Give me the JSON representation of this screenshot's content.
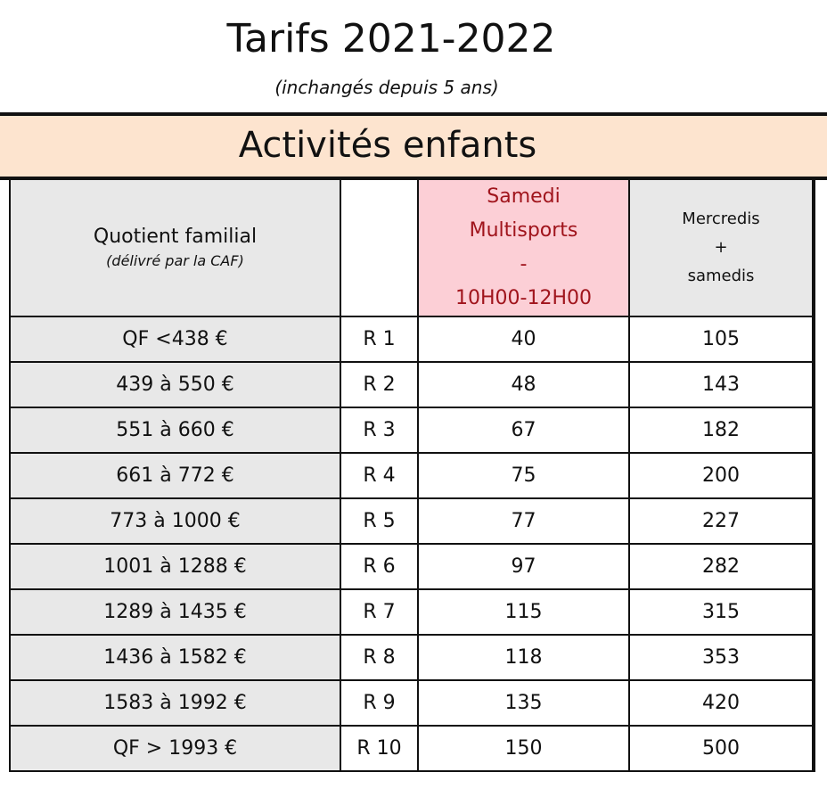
{
  "header": {
    "title": "Tarifs 2021-2022",
    "subtitle": "(inchangés depuis 5 ans)",
    "section": "Activités enfants"
  },
  "table": {
    "columns": {
      "qf_label": "Quotient familial",
      "qf_note": "(délivré par la CAF)",
      "range_label": "",
      "samedi_lines": [
        "Samedi",
        "Multisports",
        "-",
        "10H00-12H00"
      ],
      "mercredis_lines": [
        "Mercredis",
        "+",
        "samedis"
      ]
    },
    "rows": [
      {
        "qf": "QF <438 €",
        "range": "R 1",
        "samedi": "40",
        "mercredis": "105"
      },
      {
        "qf": "439 à 550 €",
        "range": "R 2",
        "samedi": "48",
        "mercredis": "143"
      },
      {
        "qf": "551 à 660 €",
        "range": "R 3",
        "samedi": "67",
        "mercredis": "182"
      },
      {
        "qf": "661 à 772 €",
        "range": "R 4",
        "samedi": "75",
        "mercredis": "200"
      },
      {
        "qf": "773 à 1000 €",
        "range": "R 5",
        "samedi": "77",
        "mercredis": "227"
      },
      {
        "qf": "1001 à 1288 €",
        "range": "R 6",
        "samedi": "97",
        "mercredis": "282"
      },
      {
        "qf": "1289 à 1435 €",
        "range": "R 7",
        "samedi": "115",
        "mercredis": "315"
      },
      {
        "qf": "1436 à 1582 €",
        "range": "R 8",
        "samedi": "118",
        "mercredis": "353"
      },
      {
        "qf": "1583 à 1992 €",
        "range": "R 9",
        "samedi": "135",
        "mercredis": "420"
      },
      {
        "qf": "QF > 1993 €",
        "range": "R 10",
        "samedi": "150",
        "mercredis": "500"
      }
    ]
  },
  "colors": {
    "band": "#fde4cf",
    "header_grey": "#e8e8e8",
    "samedi_pink": "#fccfd6",
    "samedi_text": "#a0141c"
  }
}
